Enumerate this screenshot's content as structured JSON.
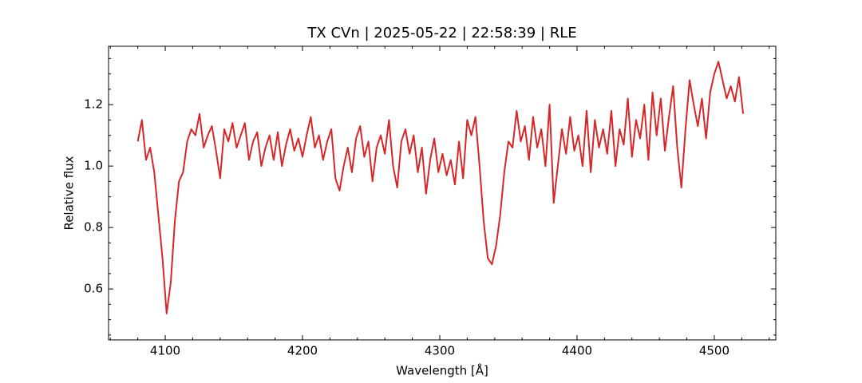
{
  "chart_data": {
    "type": "line",
    "title": "TX CVn | 2025-05-22 | 22:58:39 | RLE",
    "xlabel": "Wavelength [Å]",
    "ylabel": "Relative flux",
    "color": "#d62728",
    "xlim": [
      4058.7,
      4544.8
    ],
    "ylim": [
      0.434,
      1.39
    ],
    "xticks": [
      4100,
      4200,
      4300,
      4400,
      4500
    ],
    "yticks": [
      0.6,
      0.8,
      {
        "value": 1,
        "label": "1.0"
      },
      1.2
    ],
    "xminorticks": [
      4060,
      4080,
      4120,
      4140,
      4160,
      4180,
      4220,
      4240,
      4260,
      4280,
      4320,
      4340,
      4360,
      4380,
      4420,
      4440,
      4460,
      4480,
      4520,
      4540
    ],
    "yminorticks": [
      0.45,
      0.5,
      0.55,
      0.65,
      0.7,
      0.75,
      0.85,
      0.9,
      0.95,
      1.05,
      1.1,
      1.15,
      1.25,
      1.3,
      1.35
    ],
    "x": [
      4080,
      4083,
      4086,
      4089,
      4092,
      4095,
      4098,
      4101,
      4104,
      4107,
      4110,
      4113,
      4116,
      4119,
      4122,
      4125,
      4128,
      4131,
      4134,
      4137,
      4140,
      4143,
      4146,
      4149,
      4152,
      4155,
      4158,
      4161,
      4164,
      4167,
      4170,
      4173,
      4176,
      4179,
      4182,
      4185,
      4188,
      4191,
      4194,
      4197,
      4200,
      4203,
      4206,
      4209,
      4212,
      4215,
      4218,
      4221,
      4224,
      4227,
      4230,
      4233,
      4236,
      4239,
      4242,
      4245,
      4248,
      4251,
      4254,
      4257,
      4260,
      4263,
      4266,
      4269,
      4272,
      4275,
      4278,
      4281,
      4284,
      4287,
      4290,
      4293,
      4296,
      4299,
      4302,
      4305,
      4308,
      4311,
      4314,
      4317,
      4320,
      4323,
      4326,
      4329,
      4332,
      4335,
      4338,
      4341,
      4344,
      4347,
      4350,
      4353,
      4356,
      4359,
      4362,
      4365,
      4368,
      4371,
      4374,
      4377,
      4380,
      4383,
      4386,
      4389,
      4392,
      4395,
      4398,
      4401,
      4404,
      4407,
      4410,
      4413,
      4416,
      4419,
      4422,
      4425,
      4428,
      4431,
      4434,
      4437,
      4440,
      4443,
      4446,
      4449,
      4452,
      4455,
      4458,
      4461,
      4464,
      4467,
      4470,
      4473,
      4476,
      4479,
      4482,
      4485,
      4488,
      4491,
      4494,
      4497,
      4500,
      4503,
      4506,
      4509,
      4512,
      4515,
      4518,
      4521
    ],
    "values": [
      1.08,
      1.15,
      1.02,
      1.06,
      0.98,
      0.84,
      0.7,
      0.52,
      0.62,
      0.82,
      0.95,
      0.98,
      1.08,
      1.12,
      1.1,
      1.17,
      1.06,
      1.1,
      1.13,
      1.05,
      0.96,
      1.12,
      1.08,
      1.14,
      1.06,
      1.1,
      1.14,
      1.02,
      1.08,
      1.11,
      1.0,
      1.06,
      1.1,
      1.02,
      1.11,
      1.0,
      1.07,
      1.12,
      1.05,
      1.09,
      1.03,
      1.1,
      1.16,
      1.06,
      1.1,
      1.02,
      1.08,
      1.12,
      0.96,
      0.92,
      1.0,
      1.06,
      0.98,
      1.09,
      1.13,
      1.03,
      1.08,
      0.95,
      1.06,
      1.1,
      1.04,
      1.15,
      1.0,
      0.93,
      1.08,
      1.12,
      1.04,
      1.1,
      0.98,
      1.06,
      0.91,
      1.02,
      1.09,
      0.98,
      1.04,
      0.97,
      1.02,
      0.94,
      1.08,
      0.96,
      1.15,
      1.1,
      1.16,
      1.0,
      0.82,
      0.7,
      0.68,
      0.74,
      0.84,
      0.98,
      1.08,
      1.06,
      1.18,
      1.08,
      1.13,
      1.02,
      1.16,
      1.06,
      1.12,
      1.0,
      1.2,
      0.88,
      1.0,
      1.12,
      1.04,
      1.16,
      1.05,
      1.1,
      1.0,
      1.18,
      0.98,
      1.15,
      1.06,
      1.12,
      1.04,
      1.18,
      1.0,
      1.12,
      1.07,
      1.22,
      1.03,
      1.15,
      1.09,
      1.2,
      1.02,
      1.24,
      1.1,
      1.22,
      1.05,
      1.16,
      1.26,
      1.06,
      0.93,
      1.12,
      1.28,
      1.2,
      1.13,
      1.22,
      1.09,
      1.24,
      1.3,
      1.34,
      1.28,
      1.22,
      1.26,
      1.21,
      1.29,
      1.17
    ]
  }
}
